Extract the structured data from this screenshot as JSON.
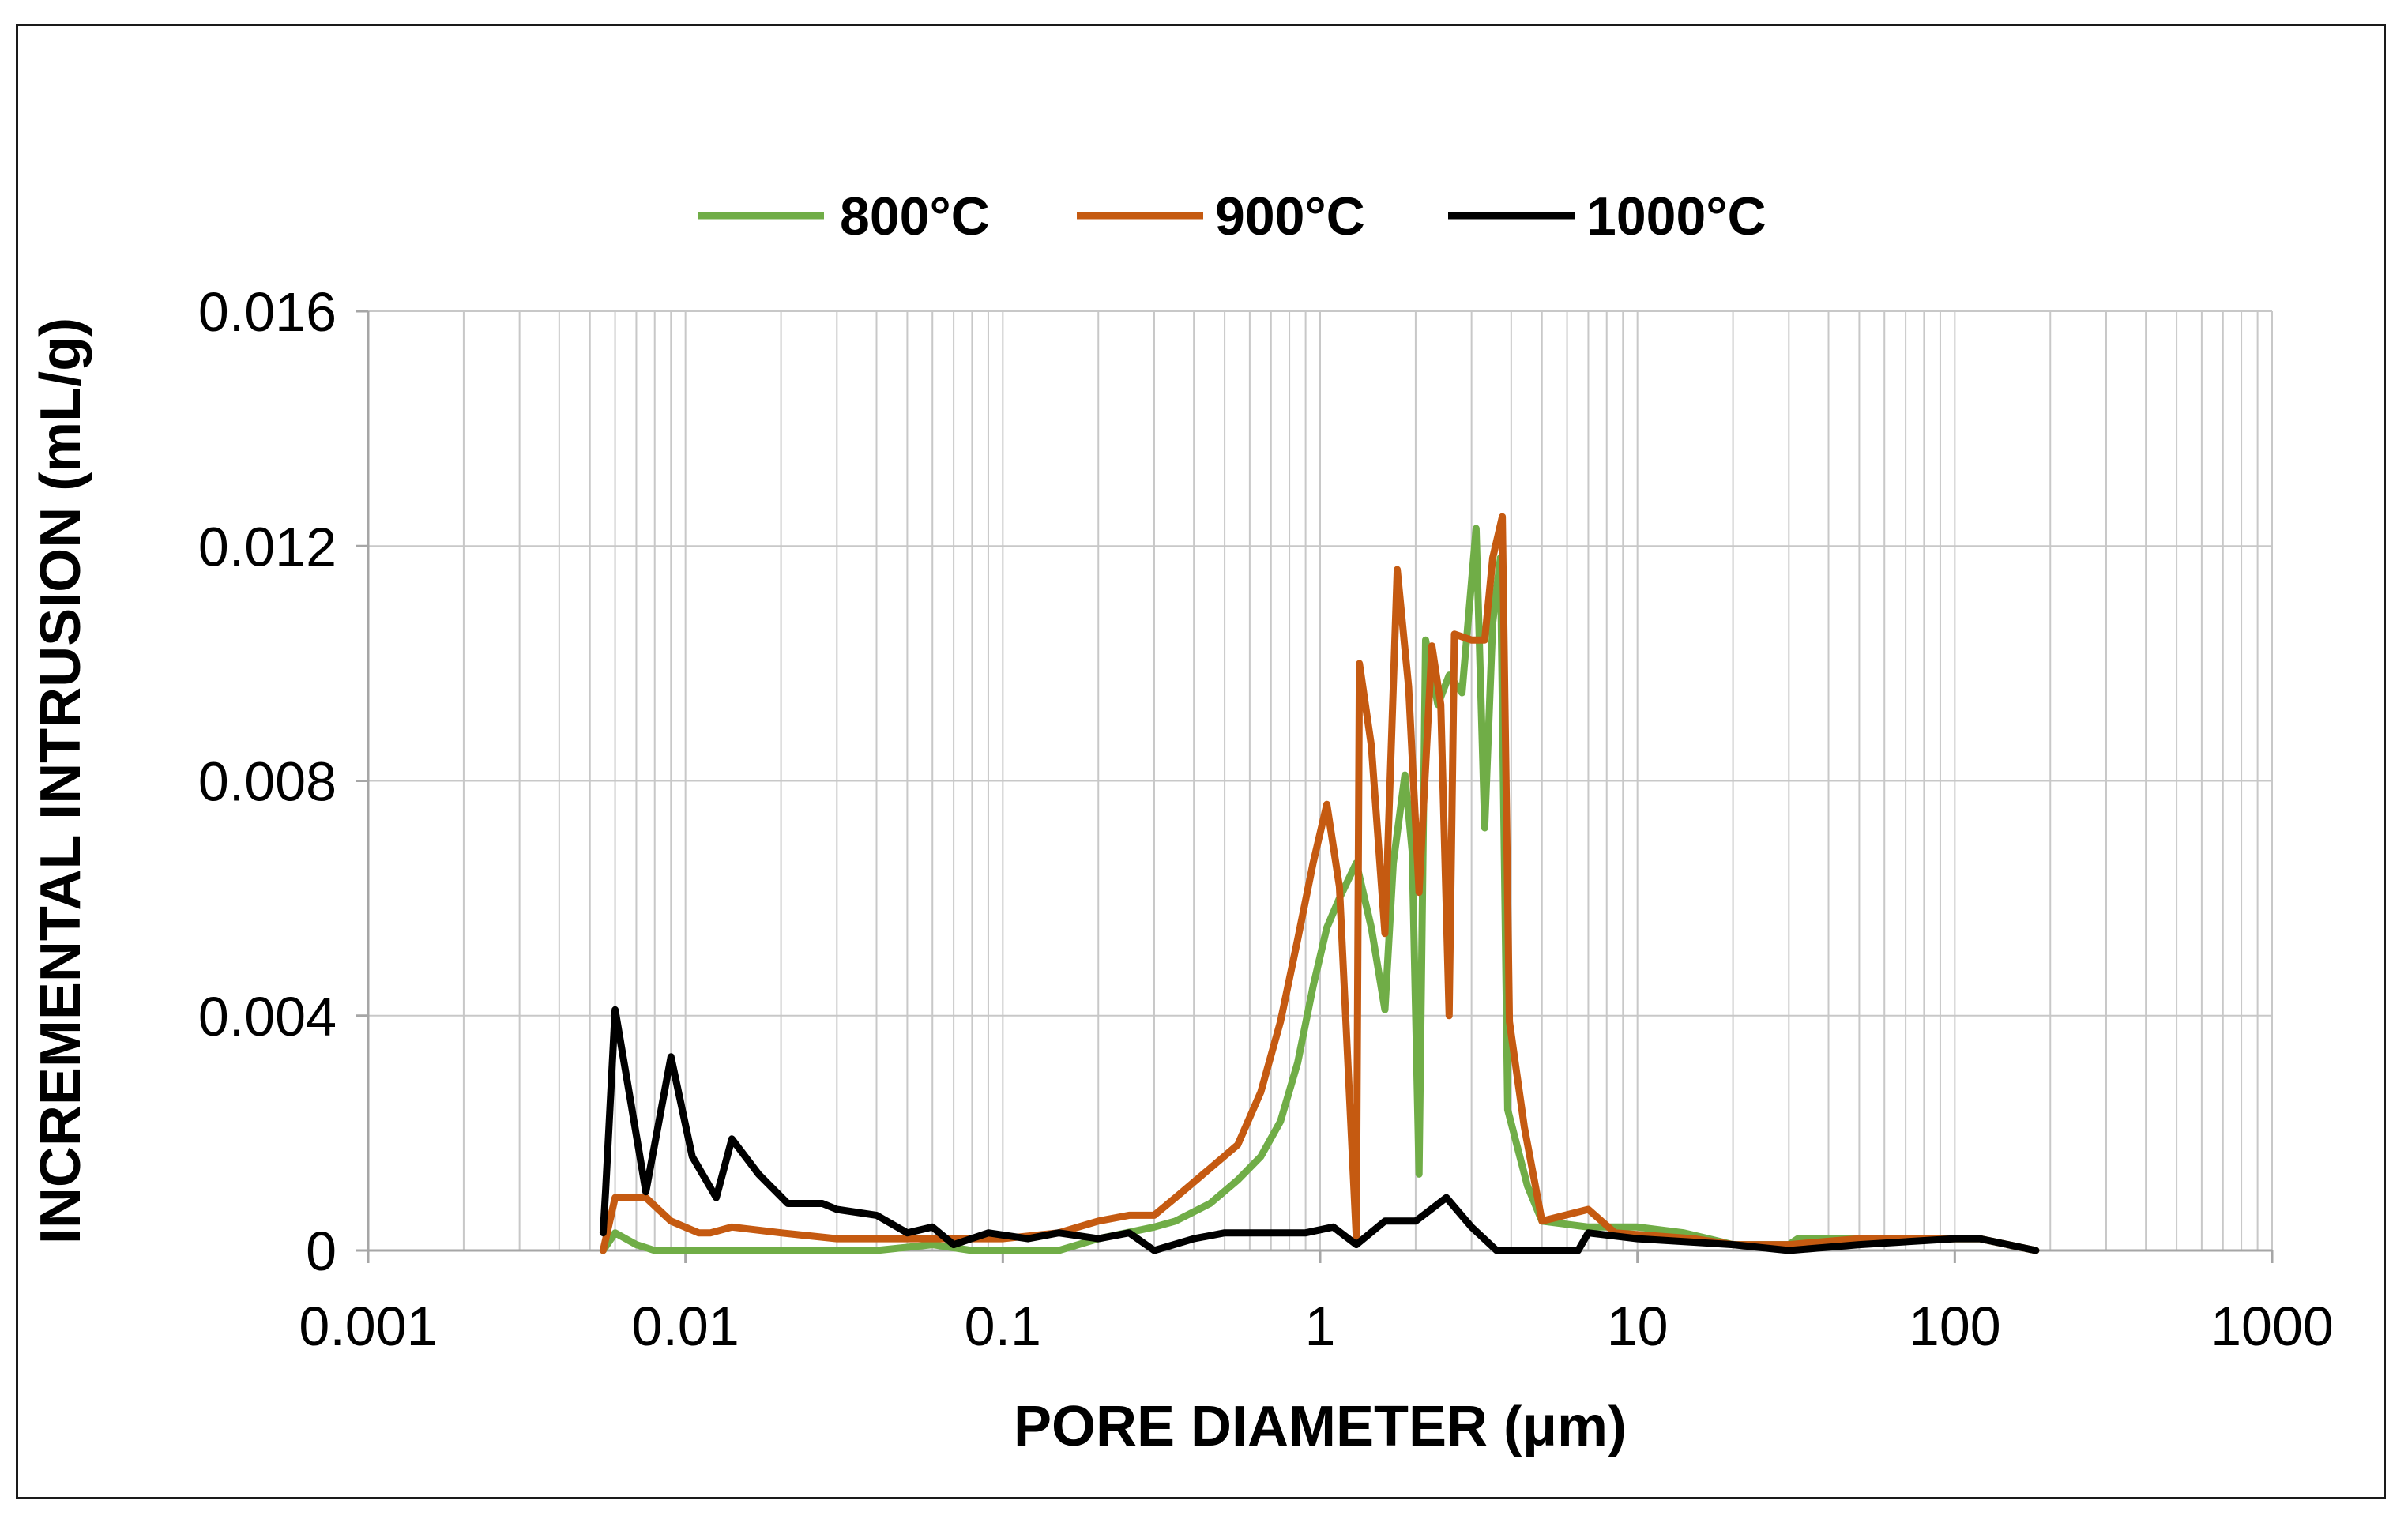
{
  "chart_data": {
    "type": "line",
    "title": "",
    "xlabel": "PORE DIAMETER (μm)",
    "ylabel": "INCREMENTAL INTRUSION (mL/g)",
    "xscale": "log",
    "xlim": [
      0.001,
      1000
    ],
    "ylim": [
      0,
      0.016
    ],
    "xticks": [
      0.001,
      0.01,
      0.1,
      1,
      10,
      100,
      1000
    ],
    "xtick_labels": [
      "0.001",
      "0.01",
      "0.1",
      "1",
      "10",
      "100",
      "1000"
    ],
    "yticks": [
      0,
      0.004,
      0.008,
      0.012,
      0.016
    ],
    "ytick_labels": [
      "0",
      "0.004",
      "0.008",
      "0.012",
      "0.016"
    ],
    "grid": true,
    "legend_position": "top-center",
    "series": [
      {
        "name": "800°C",
        "color": "#70AD47",
        "points": [
          [
            0.0055,
            0.0
          ],
          [
            0.006,
            0.0003
          ],
          [
            0.007,
            0.0001
          ],
          [
            0.008,
            0.0
          ],
          [
            0.01,
            0.0
          ],
          [
            0.02,
            0.0
          ],
          [
            0.04,
            0.0
          ],
          [
            0.06,
            0.0001
          ],
          [
            0.08,
            0.0
          ],
          [
            0.1,
            0.0
          ],
          [
            0.15,
            0.0
          ],
          [
            0.2,
            0.0002
          ],
          [
            0.3,
            0.0004
          ],
          [
            0.35,
            0.0005
          ],
          [
            0.45,
            0.0008
          ],
          [
            0.55,
            0.0012
          ],
          [
            0.65,
            0.0016
          ],
          [
            0.75,
            0.0022
          ],
          [
            0.85,
            0.0032
          ],
          [
            0.95,
            0.0045
          ],
          [
            1.05,
            0.0055
          ],
          [
            1.15,
            0.006
          ],
          [
            1.3,
            0.0066
          ],
          [
            1.45,
            0.0055
          ],
          [
            1.6,
            0.0041
          ],
          [
            1.7,
            0.0066
          ],
          [
            1.85,
            0.0081
          ],
          [
            1.95,
            0.0068
          ],
          [
            2.05,
            0.0013
          ],
          [
            2.15,
            0.0104
          ],
          [
            2.35,
            0.0093
          ],
          [
            2.55,
            0.0098
          ],
          [
            2.8,
            0.0095
          ],
          [
            3.1,
            0.0123
          ],
          [
            3.3,
            0.0072
          ],
          [
            3.5,
            0.0107
          ],
          [
            3.7,
            0.0118
          ],
          [
            3.9,
            0.0024
          ],
          [
            4.5,
            0.0011
          ],
          [
            5.0,
            0.0005
          ],
          [
            7.0,
            0.0004
          ],
          [
            10.0,
            0.0004
          ],
          [
            14.0,
            0.0003
          ],
          [
            20.0,
            0.0001
          ],
          [
            30.0,
            0.0001
          ],
          [
            32.0,
            0.0002
          ],
          [
            50.0,
            0.0002
          ],
          [
            100.0,
            0.0002
          ],
          [
            120.0,
            0.0002
          ],
          [
            180.0,
            0.0
          ]
        ]
      },
      {
        "name": "900°C",
        "color": "#C55A11",
        "points": [
          [
            0.0055,
            0.0
          ],
          [
            0.006,
            0.0009
          ],
          [
            0.0075,
            0.0009
          ],
          [
            0.009,
            0.0005
          ],
          [
            0.011,
            0.0003
          ],
          [
            0.012,
            0.0003
          ],
          [
            0.014,
            0.0004
          ],
          [
            0.02,
            0.0003
          ],
          [
            0.03,
            0.0002
          ],
          [
            0.05,
            0.0002
          ],
          [
            0.07,
            0.0002
          ],
          [
            0.1,
            0.0002
          ],
          [
            0.15,
            0.0003
          ],
          [
            0.2,
            0.0005
          ],
          [
            0.25,
            0.0006
          ],
          [
            0.3,
            0.0006
          ],
          [
            0.35,
            0.0009
          ],
          [
            0.45,
            0.0014
          ],
          [
            0.55,
            0.0018
          ],
          [
            0.65,
            0.0027
          ],
          [
            0.75,
            0.0039
          ],
          [
            0.85,
            0.0053
          ],
          [
            0.95,
            0.0066
          ],
          [
            1.05,
            0.0076
          ],
          [
            1.15,
            0.0062
          ],
          [
            1.3,
            0.0002
          ],
          [
            1.33,
            0.01
          ],
          [
            1.45,
            0.0086
          ],
          [
            1.6,
            0.0054
          ],
          [
            1.75,
            0.0116
          ],
          [
            1.9,
            0.0096
          ],
          [
            2.05,
            0.0061
          ],
          [
            2.25,
            0.0103
          ],
          [
            2.4,
            0.0093
          ],
          [
            2.55,
            0.004
          ],
          [
            2.65,
            0.0105
          ],
          [
            3.0,
            0.0104
          ],
          [
            3.3,
            0.0104
          ],
          [
            3.5,
            0.0118
          ],
          [
            3.75,
            0.0125
          ],
          [
            3.95,
            0.0039
          ],
          [
            4.4,
            0.0021
          ],
          [
            5.0,
            0.0005
          ],
          [
            7.0,
            0.0007
          ],
          [
            8.5,
            0.0003
          ],
          [
            15.0,
            0.0002
          ],
          [
            20.0,
            0.0001
          ],
          [
            30.0,
            0.0001
          ],
          [
            50.0,
            0.0002
          ],
          [
            100.0,
            0.0002
          ],
          [
            120.0,
            0.0002
          ],
          [
            180.0,
            0.0
          ]
        ]
      },
      {
        "name": "1000°C",
        "color": "#000000",
        "points": [
          [
            0.0055,
            0.0003
          ],
          [
            0.0056,
            0.001
          ],
          [
            0.006,
            0.0041
          ],
          [
            0.0065,
            0.003
          ],
          [
            0.0075,
            0.001
          ],
          [
            0.009,
            0.0033
          ],
          [
            0.0105,
            0.0016
          ],
          [
            0.0125,
            0.0009
          ],
          [
            0.014,
            0.0019
          ],
          [
            0.017,
            0.0013
          ],
          [
            0.021,
            0.0008
          ],
          [
            0.027,
            0.0008
          ],
          [
            0.03,
            0.0007
          ],
          [
            0.04,
            0.0006
          ],
          [
            0.05,
            0.0003
          ],
          [
            0.06,
            0.0004
          ],
          [
            0.07,
            0.0001
          ],
          [
            0.09,
            0.0003
          ],
          [
            0.12,
            0.0002
          ],
          [
            0.15,
            0.0003
          ],
          [
            0.2,
            0.0002
          ],
          [
            0.25,
            0.0003
          ],
          [
            0.3,
            0.0
          ],
          [
            0.4,
            0.0002
          ],
          [
            0.5,
            0.0003
          ],
          [
            0.7,
            0.0003
          ],
          [
            0.9,
            0.0003
          ],
          [
            1.1,
            0.0004
          ],
          [
            1.3,
            0.0001
          ],
          [
            1.6,
            0.0005
          ],
          [
            2.0,
            0.0005
          ],
          [
            2.5,
            0.0009
          ],
          [
            3.0,
            0.0004
          ],
          [
            3.6,
            0.0
          ],
          [
            4.0,
            0.0
          ],
          [
            6.5,
            0.0
          ],
          [
            7.0,
            0.0003
          ],
          [
            10.0,
            0.0002
          ],
          [
            20.0,
            0.0001
          ],
          [
            30.0,
            0.0
          ],
          [
            50.0,
            0.0001
          ],
          [
            100.0,
            0.0002
          ],
          [
            120.0,
            0.0002
          ],
          [
            180.0,
            0.0
          ]
        ]
      }
    ]
  }
}
